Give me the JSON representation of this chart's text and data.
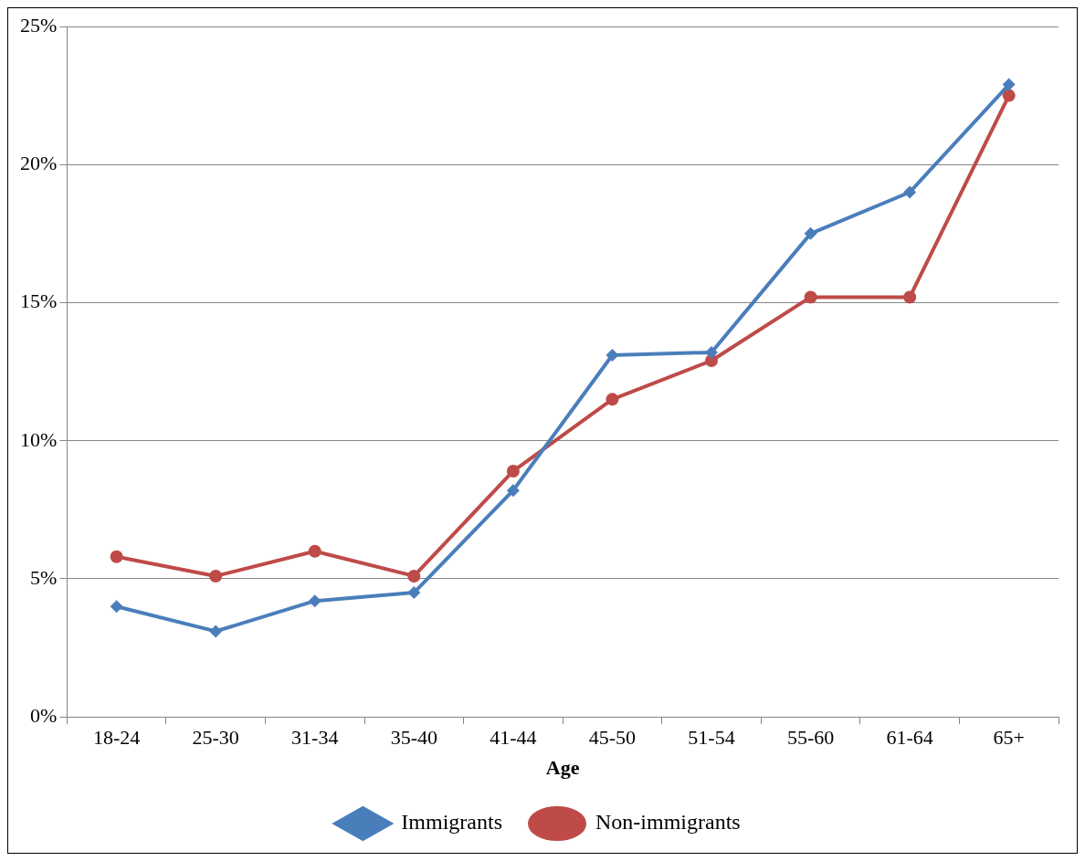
{
  "chart_data": {
    "type": "line",
    "xlabel": "Age",
    "categories": [
      "18-24",
      "25-30",
      "31-34",
      "35-40",
      "41-44",
      "45-50",
      "51-54",
      "55-60",
      "61-64",
      "65+"
    ],
    "series": [
      {
        "name": "Immigrants",
        "color": "#4a7ebb",
        "marker": "diamond",
        "values": [
          4.0,
          3.1,
          4.2,
          4.5,
          8.2,
          13.1,
          13.2,
          17.5,
          19.0,
          22.9
        ]
      },
      {
        "name": "Non-immigrants",
        "color": "#be4b48",
        "marker": "circle",
        "values": [
          5.8,
          5.1,
          6.0,
          5.1,
          8.9,
          11.5,
          12.9,
          15.2,
          15.2,
          22.5
        ]
      }
    ],
    "ylim": [
      0,
      25
    ],
    "yticks": [
      {
        "value": 0,
        "label": "0%"
      },
      {
        "value": 5,
        "label": "5%"
      },
      {
        "value": 10,
        "label": "10%"
      },
      {
        "value": 15,
        "label": "15%"
      },
      {
        "value": 20,
        "label": "20%"
      },
      {
        "value": 25,
        "label": "25%"
      }
    ],
    "grid": "y",
    "legend": "bottom",
    "line_style": "solid"
  }
}
